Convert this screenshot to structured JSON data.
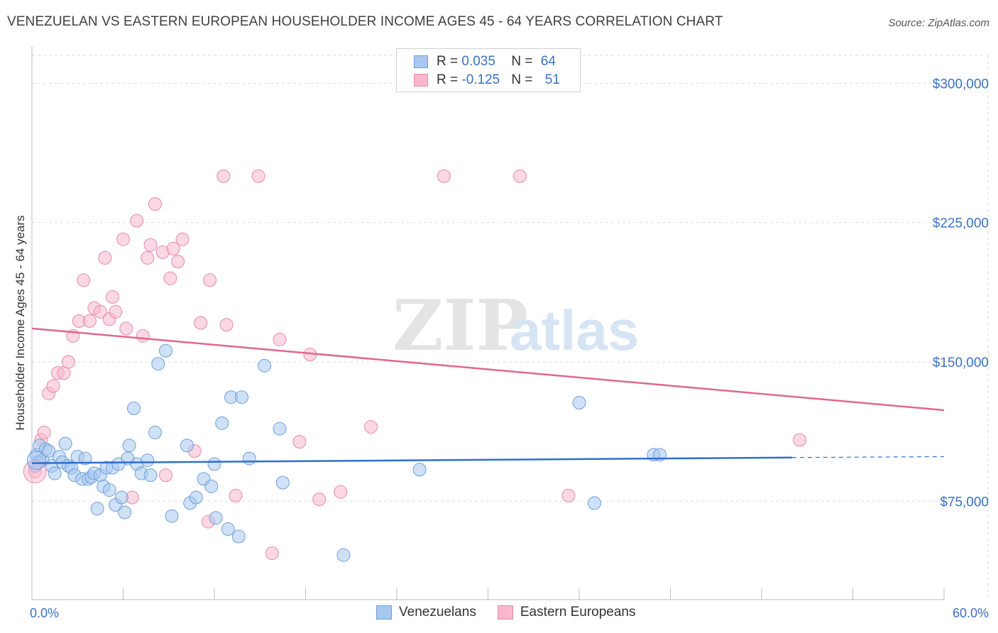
{
  "header": {
    "title": "VENEZUELAN VS EASTERN EUROPEAN HOUSEHOLDER INCOME AGES 45 - 64 YEARS CORRELATION CHART",
    "source": "Source: ZipAtlas.com"
  },
  "watermark": {
    "zip": "ZIP",
    "atlas": "atlas"
  },
  "legend": {
    "rows": [
      {
        "r_label": "R = ",
        "r_value": "0.035",
        "n_label": "N = ",
        "n_value": "64",
        "color": "#a8c8f0"
      },
      {
        "r_label": "R = ",
        "r_value": "-0.125",
        "n_label": "N = ",
        "n_value": "51",
        "color": "#f7b8cc"
      }
    ]
  },
  "bottom_legend": {
    "a": "Venezuelans",
    "b": "Eastern Europeans"
  },
  "colors": {
    "blue_fill": "#a8c8f0",
    "blue_stroke": "#6f9fd8",
    "blue_line": "#2f6fcc",
    "pink_fill": "#f7b8cc",
    "pink_stroke": "#e88aa8",
    "pink_line": "#e0678f",
    "grid": "#dddddd",
    "tick_text": "#3b72c4"
  },
  "chart_data": {
    "type": "scatter",
    "title": "VENEZUELAN VS EASTERN EUROPEAN HOUSEHOLDER INCOME AGES 45 - 64 YEARS CORRELATION CHART",
    "xlabel": "",
    "ylabel": "Householder Income Ages 45 - 64 years",
    "xlim": [
      0,
      60
    ],
    "ylim": [
      22000,
      320000
    ],
    "x_tick_labels": [
      "0.0%",
      "60.0%"
    ],
    "y_ticks": [
      75000,
      150000,
      225000,
      300000
    ],
    "y_tick_labels": [
      "$75,000",
      "$150,000",
      "$225,000",
      "$300,000"
    ],
    "grid": true,
    "legend_position": "top-center",
    "series": [
      {
        "name": "Venezuelans",
        "color": "#a8c8f0",
        "trend": {
          "x": [
            0,
            50
          ],
          "y": [
            95500,
            98500
          ],
          "dashed_to": 60,
          "dashed_y": 99000
        },
        "points": [
          [
            0.3,
            100000
          ],
          [
            0.4,
            96000
          ],
          [
            0.5,
            105000
          ],
          [
            0.7,
            97000
          ],
          [
            0.9,
            103000
          ],
          [
            1.1,
            102000
          ],
          [
            1.3,
            94000
          ],
          [
            1.5,
            90000
          ],
          [
            1.8,
            99000
          ],
          [
            2.0,
            96000
          ],
          [
            2.2,
            106000
          ],
          [
            2.4,
            94000
          ],
          [
            2.6,
            93000
          ],
          [
            2.8,
            89000
          ],
          [
            3.0,
            99000
          ],
          [
            3.3,
            87000
          ],
          [
            3.5,
            98000
          ],
          [
            3.7,
            87000
          ],
          [
            3.9,
            88000
          ],
          [
            4.1,
            90000
          ],
          [
            4.3,
            71000
          ],
          [
            4.5,
            89000
          ],
          [
            4.7,
            83000
          ],
          [
            4.9,
            93000
          ],
          [
            5.1,
            81000
          ],
          [
            5.3,
            93000
          ],
          [
            5.5,
            73000
          ],
          [
            5.7,
            95000
          ],
          [
            5.9,
            77000
          ],
          [
            6.1,
            69000
          ],
          [
            6.3,
            98000
          ],
          [
            6.4,
            105000
          ],
          [
            6.7,
            125000
          ],
          [
            6.9,
            95000
          ],
          [
            7.2,
            90000
          ],
          [
            7.6,
            97000
          ],
          [
            7.8,
            89000
          ],
          [
            8.1,
            112000
          ],
          [
            8.3,
            149000
          ],
          [
            8.8,
            156000
          ],
          [
            9.2,
            67000
          ],
          [
            10.2,
            105000
          ],
          [
            10.4,
            74000
          ],
          [
            10.8,
            77000
          ],
          [
            11.3,
            87000
          ],
          [
            11.8,
            83000
          ],
          [
            12.0,
            95000
          ],
          [
            12.1,
            66000
          ],
          [
            12.5,
            117000
          ],
          [
            12.9,
            60000
          ],
          [
            13.1,
            131000
          ],
          [
            13.6,
            56000
          ],
          [
            13.8,
            131000
          ],
          [
            14.3,
            98000
          ],
          [
            15.3,
            148000
          ],
          [
            16.3,
            114000
          ],
          [
            16.5,
            85000
          ],
          [
            20.5,
            46000
          ],
          [
            25.5,
            92000
          ],
          [
            36.0,
            128000
          ],
          [
            37.0,
            74000
          ],
          [
            40.9,
            100000
          ],
          [
            41.3,
            100000
          ],
          [
            0.2,
            94000
          ]
        ]
      },
      {
        "name": "Eastern Europeans",
        "color": "#f7b8cc",
        "trend": {
          "x": [
            0,
            60
          ],
          "y": [
            168000,
            124000
          ]
        },
        "points": [
          [
            0.2,
            91000
          ],
          [
            0.6,
            108000
          ],
          [
            0.8,
            112000
          ],
          [
            1.1,
            133000
          ],
          [
            1.4,
            137000
          ],
          [
            1.7,
            144000
          ],
          [
            2.1,
            144000
          ],
          [
            2.4,
            150000
          ],
          [
            2.7,
            164000
          ],
          [
            3.1,
            172000
          ],
          [
            3.4,
            194000
          ],
          [
            3.8,
            172000
          ],
          [
            4.1,
            179000
          ],
          [
            4.5,
            177000
          ],
          [
            4.8,
            206000
          ],
          [
            5.1,
            173000
          ],
          [
            5.3,
            185000
          ],
          [
            5.5,
            177000
          ],
          [
            6.0,
            216000
          ],
          [
            6.2,
            168000
          ],
          [
            6.6,
            77000
          ],
          [
            6.9,
            226000
          ],
          [
            7.3,
            164000
          ],
          [
            7.6,
            206000
          ],
          [
            7.8,
            213000
          ],
          [
            8.1,
            235000
          ],
          [
            8.6,
            209000
          ],
          [
            8.8,
            89000
          ],
          [
            9.1,
            195000
          ],
          [
            9.3,
            211000
          ],
          [
            9.6,
            204000
          ],
          [
            9.9,
            216000
          ],
          [
            10.7,
            102000
          ],
          [
            11.1,
            171000
          ],
          [
            11.6,
            64000
          ],
          [
            11.7,
            194000
          ],
          [
            12.6,
            250000
          ],
          [
            12.8,
            170000
          ],
          [
            13.4,
            78000
          ],
          [
            14.9,
            250000
          ],
          [
            15.8,
            47000
          ],
          [
            16.3,
            162000
          ],
          [
            17.6,
            107000
          ],
          [
            18.3,
            154000
          ],
          [
            18.9,
            76000
          ],
          [
            20.3,
            80000
          ],
          [
            22.3,
            115000
          ],
          [
            27.1,
            250000
          ],
          [
            32.1,
            250000
          ],
          [
            35.3,
            78000
          ],
          [
            50.5,
            108000
          ]
        ]
      }
    ]
  }
}
